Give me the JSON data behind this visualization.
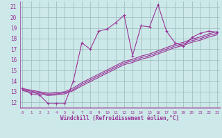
{
  "xlabel": "Windchill (Refroidissement éolien,°C)",
  "bg_color": "#cce8e8",
  "line_color": "#993399",
  "grid_color": "#99bbbb",
  "x_data": [
    0,
    1,
    2,
    3,
    4,
    5,
    6,
    7,
    8,
    9,
    10,
    11,
    12,
    13,
    14,
    15,
    16,
    17,
    18,
    19,
    20,
    21,
    22,
    23
  ],
  "y_main": [
    13.3,
    12.8,
    12.7,
    11.9,
    11.9,
    11.9,
    14.0,
    17.6,
    17.0,
    18.7,
    18.9,
    19.5,
    20.2,
    16.4,
    19.2,
    19.1,
    21.2,
    18.7,
    17.6,
    17.3,
    18.1,
    18.5,
    18.7,
    18.6
  ],
  "y_reg1": [
    13.3,
    13.15,
    13.0,
    12.85,
    12.9,
    13.0,
    13.35,
    13.85,
    14.25,
    14.65,
    15.05,
    15.45,
    15.85,
    16.05,
    16.35,
    16.55,
    16.85,
    17.15,
    17.45,
    17.65,
    17.95,
    18.15,
    18.45,
    18.65
  ],
  "y_reg2": [
    13.1,
    12.95,
    12.8,
    12.65,
    12.7,
    12.8,
    13.1,
    13.55,
    13.95,
    14.35,
    14.75,
    15.15,
    15.55,
    15.75,
    16.05,
    16.25,
    16.55,
    16.85,
    17.15,
    17.35,
    17.65,
    17.85,
    18.15,
    18.35
  ],
  "y_reg3": [
    13.2,
    13.05,
    12.9,
    12.75,
    12.8,
    12.9,
    13.2,
    13.7,
    14.1,
    14.5,
    14.9,
    15.3,
    15.7,
    15.9,
    16.2,
    16.4,
    16.7,
    17.0,
    17.3,
    17.5,
    17.8,
    18.0,
    18.3,
    18.5
  ],
  "xlim": [
    -0.3,
    23.3
  ],
  "ylim": [
    11.5,
    21.5
  ],
  "yticks": [
    12,
    13,
    14,
    15,
    16,
    17,
    18,
    19,
    20,
    21
  ],
  "xticks": [
    0,
    1,
    2,
    3,
    4,
    5,
    6,
    7,
    8,
    9,
    10,
    11,
    12,
    13,
    14,
    15,
    16,
    17,
    18,
    19,
    20,
    21,
    22,
    23
  ]
}
